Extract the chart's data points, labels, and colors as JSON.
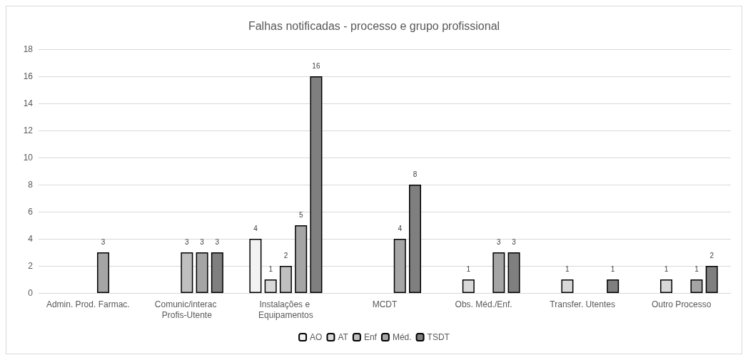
{
  "chart_data": {
    "type": "bar",
    "title": "Falhas notificadas - processo e grupo profissional",
    "categories": [
      "Admin. Prod. Farmac.",
      "Comunic/interac Profis-Utente",
      "Instalações e Equipamentos",
      "MCDT",
      "Obs. Méd./Enf.",
      "Transfer. Utentes",
      "Outro Processo"
    ],
    "series": [
      {
        "name": "AO",
        "color": "#f2f2f2",
        "values": [
          null,
          null,
          4,
          null,
          null,
          null,
          null
        ]
      },
      {
        "name": "AT",
        "color": "#d9d9d9",
        "values": [
          null,
          null,
          1,
          null,
          1,
          1,
          1
        ]
      },
      {
        "name": "Enf",
        "color": "#bfbfbf",
        "values": [
          null,
          3,
          2,
          null,
          null,
          null,
          null
        ]
      },
      {
        "name": "Méd.",
        "color": "#a5a5a5",
        "values": [
          3,
          3,
          5,
          4,
          3,
          null,
          1
        ]
      },
      {
        "name": "TSDT",
        "color": "#7f7f7f",
        "values": [
          null,
          3,
          16,
          8,
          3,
          1,
          2
        ]
      }
    ],
    "ylim": [
      0,
      18
    ],
    "yticks": [
      0,
      2,
      4,
      6,
      8,
      10,
      12,
      14,
      16,
      18
    ],
    "grid": "y",
    "legend": "bottom",
    "data_labels": true
  }
}
